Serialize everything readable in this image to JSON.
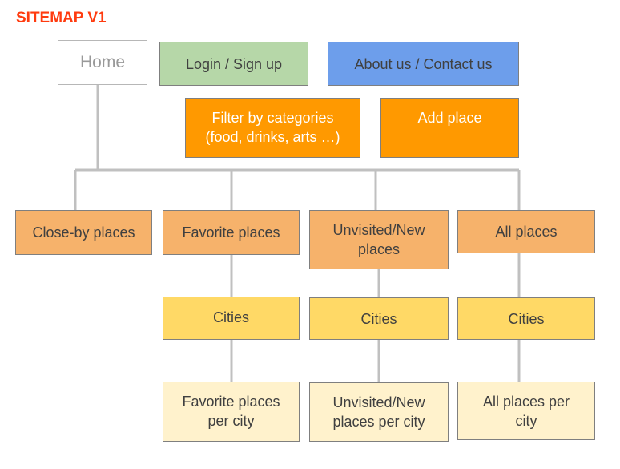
{
  "title": "SITEMAP V1",
  "colors": {
    "title": "#ff3b0f",
    "connector": "#c0c0c0",
    "home": "#ffffff",
    "login": "#b6d7a8",
    "about": "#6d9eeb",
    "feature": "#ff9900",
    "section": "#f6b26b",
    "cities": "#ffd966",
    "per_city": "#fff2cc"
  },
  "nodes": {
    "home": "Home",
    "login": "Login / Sign up",
    "about": "About us / Contact us",
    "filter": "Filter by categories (food, drinks, arts …)",
    "add_place": "Add place",
    "close_by": "Close-by places",
    "favorite": "Favorite places",
    "unvisited": "Unvisited/New places",
    "all_places": "All places",
    "cities_favorite": "Cities",
    "cities_unvisited": "Cities",
    "cities_all": "Cities",
    "favorite_per_city": "Favorite places per city",
    "unvisited_per_city": "Unvisited/New places per city",
    "all_per_city": "All places per city"
  }
}
